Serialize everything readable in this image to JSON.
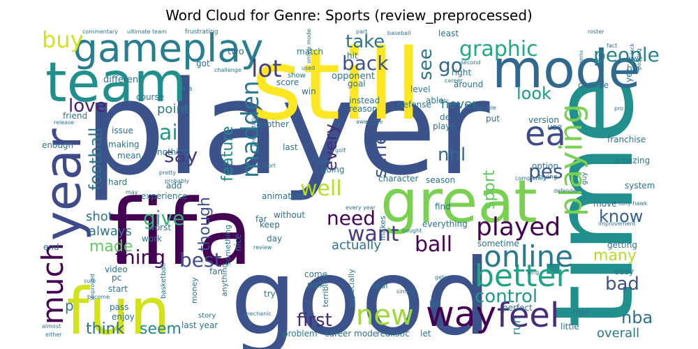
{
  "chart_data": {
    "type": "wordcloud",
    "title": "Word Cloud for Genre: Sports (review_preprocessed)",
    "words": [
      {
        "text": "player",
        "color": "#3b528b"
      },
      {
        "text": "time",
        "color": "#21908d"
      },
      {
        "text": "good",
        "color": "#3b528b"
      },
      {
        "text": "still",
        "color": "#fde725"
      },
      {
        "text": "fifa",
        "color": "#440154"
      },
      {
        "text": "team",
        "color": "#21908d"
      },
      {
        "text": "mode",
        "color": "#31688e"
      },
      {
        "text": "great",
        "color": "#7ad151"
      },
      {
        "text": "year",
        "color": "#3e4a89"
      },
      {
        "text": "fun",
        "color": "#d2e21b"
      },
      {
        "text": "gameplay",
        "color": "#287d8e"
      },
      {
        "text": "much",
        "color": "#440154"
      },
      {
        "text": "way",
        "color": "#440154"
      },
      {
        "text": "feel",
        "color": "#472c7a"
      },
      {
        "text": "better",
        "color": "#20a386"
      },
      {
        "text": "online",
        "color": "#2a788e"
      },
      {
        "text": "new",
        "color": "#a0da39"
      },
      {
        "text": "ea",
        "color": "#3e4a89"
      },
      {
        "text": "playing",
        "color": "#7ad151"
      },
      {
        "text": "madden",
        "color": "#2a788e"
      },
      {
        "text": "played",
        "color": "#440154"
      },
      {
        "text": "lot",
        "color": "#433e85"
      },
      {
        "text": "graphic",
        "color": "#22a884"
      },
      {
        "text": "buy",
        "color": "#d2e21b"
      },
      {
        "text": "people",
        "color": "#25848e"
      },
      {
        "text": "take",
        "color": "#2c728e"
      },
      {
        "text": "back",
        "color": "#3b528b"
      },
      {
        "text": "go",
        "color": "#31688e"
      },
      {
        "text": "see",
        "color": "#2c728e"
      },
      {
        "text": "ai",
        "color": "#1f9a8a"
      },
      {
        "text": "love",
        "color": "#482173"
      },
      {
        "text": "say",
        "color": "#443983"
      },
      {
        "text": "football",
        "color": "#2c728e"
      },
      {
        "text": "want",
        "color": "#443983"
      },
      {
        "text": "well",
        "color": "#b5de2b"
      },
      {
        "text": "need",
        "color": "#440154"
      },
      {
        "text": "ball",
        "color": "#440154"
      },
      {
        "text": "serie",
        "color": "#3b528b"
      },
      {
        "text": "nhl",
        "color": "#31688e"
      },
      {
        "text": "pes",
        "color": "#3b528b"
      },
      {
        "text": "sport",
        "color": "#5ec962"
      },
      {
        "text": "look",
        "color": "#1f9a8a"
      },
      {
        "text": "though",
        "color": "#3b528b"
      },
      {
        "text": "feature",
        "color": "#25848e"
      },
      {
        "text": "every",
        "color": "#482878"
      },
      {
        "text": "give",
        "color": "#35b779"
      },
      {
        "text": "thing",
        "color": "#440154"
      },
      {
        "text": "best",
        "color": "#3e4a89"
      },
      {
        "text": "made",
        "color": "#5ec962"
      },
      {
        "text": "control",
        "color": "#1f9a8a"
      },
      {
        "text": "first",
        "color": "#482878"
      },
      {
        "text": "know",
        "color": "#355f8d"
      },
      {
        "text": "bad",
        "color": "#3b528b"
      },
      {
        "text": "many",
        "color": "#b5de2b"
      },
      {
        "text": "nba",
        "color": "#2c728e"
      },
      {
        "text": "seem",
        "color": "#25848e"
      },
      {
        "text": "think",
        "color": "#2c728e"
      },
      {
        "text": "actually",
        "color": "#2c728e"
      },
      {
        "text": "shot",
        "color": "#2c728e"
      },
      {
        "text": "always",
        "color": "#2c728e"
      },
      {
        "text": "point",
        "color": "#2a788e"
      },
      {
        "text": "never",
        "color": "#2a788e"
      },
      {
        "text": "p",
        "color": "#2a788e"
      },
      {
        "text": "overall",
        "color": "#2a788e"
      },
      {
        "text": "run",
        "color": "#2a788e"
      },
      {
        "text": "different",
        "color": "#2c728e"
      },
      {
        "text": "two",
        "color": "#31688e"
      },
      {
        "text": "match",
        "color": "#2a788e"
      },
      {
        "text": "hit",
        "color": "#2c728e"
      },
      {
        "text": "score",
        "color": "#2c728e"
      },
      {
        "text": "opponent",
        "color": "#2c728e"
      },
      {
        "text": "level",
        "color": "#2a788e"
      },
      {
        "text": "right",
        "color": "#2c728e"
      },
      {
        "text": "around",
        "color": "#2c728e"
      },
      {
        "text": "least",
        "color": "#2c728e"
      },
      {
        "text": "big",
        "color": "#2c728e"
      },
      {
        "text": "yet",
        "color": "#2c728e"
      },
      {
        "text": "change",
        "color": "#2c728e"
      },
      {
        "text": "defense",
        "color": "#2c728e"
      },
      {
        "text": "goal",
        "color": "#2c728e"
      },
      {
        "text": "win",
        "color": "#2c728e"
      },
      {
        "text": "instead",
        "color": "#2c728e"
      },
      {
        "text": "reason",
        "color": "#2c728e"
      },
      {
        "text": "able",
        "color": "#2c728e"
      },
      {
        "text": "de",
        "color": "#2c728e"
      },
      {
        "text": "put",
        "color": "#2c728e"
      },
      {
        "text": "plays",
        "color": "#2c728e"
      },
      {
        "text": "version",
        "color": "#2c728e"
      },
      {
        "text": "use",
        "color": "#2c728e"
      },
      {
        "text": "franchise",
        "color": "#2c728e"
      },
      {
        "text": "amazing",
        "color": "#2c728e"
      },
      {
        "text": "option",
        "color": "#2c728e"
      },
      {
        "text": "system",
        "color": "#2c728e"
      },
      {
        "text": "move",
        "color": "#2c728e"
      },
      {
        "text": "getting",
        "color": "#2c728e"
      },
      {
        "text": "easy",
        "color": "#2c728e"
      },
      {
        "text": "little",
        "color": "#2c728e"
      },
      {
        "text": "title",
        "color": "#2c728e"
      },
      {
        "text": "perfect",
        "color": "#2c728e"
      },
      {
        "text": "sometime",
        "color": "#2c728e"
      },
      {
        "text": "find",
        "color": "#2c728e"
      },
      {
        "text": "everything",
        "color": "#2c728e"
      },
      {
        "text": "character",
        "color": "#2c728e"
      },
      {
        "text": "season",
        "color": "#2c728e"
      },
      {
        "text": "going",
        "color": "#2c728e"
      },
      {
        "text": "another",
        "color": "#2c728e"
      },
      {
        "text": "last",
        "color": "#2c728e"
      },
      {
        "text": "animation",
        "color": "#2c728e"
      },
      {
        "text": "makes",
        "color": "#2c728e"
      },
      {
        "text": "without",
        "color": "#2c728e"
      },
      {
        "text": "keep",
        "color": "#2c728e"
      },
      {
        "text": "far",
        "color": "#2c728e"
      },
      {
        "text": "day",
        "color": "#2c728e"
      },
      {
        "text": "nice",
        "color": "#2c728e"
      },
      {
        "text": "something",
        "color": "#2c728e"
      },
      {
        "text": "anything",
        "color": "#2c728e"
      },
      {
        "text": "fan",
        "color": "#2c728e"
      },
      {
        "text": "money",
        "color": "#2c728e"
      },
      {
        "text": "story",
        "color": "#2c728e"
      },
      {
        "text": "try",
        "color": "#2c728e"
      },
      {
        "text": "come",
        "color": "#2c728e"
      },
      {
        "text": "pick",
        "color": "#2c728e"
      },
      {
        "text": "especially",
        "color": "#2c728e"
      },
      {
        "text": "terrible",
        "color": "#2c728e"
      },
      {
        "text": "real",
        "color": "#2c728e"
      },
      {
        "text": "bit",
        "color": "#2c728e"
      },
      {
        "text": "problem",
        "color": "#2c728e"
      },
      {
        "text": "career mode",
        "color": "#2c728e"
      },
      {
        "text": "realistic",
        "color": "#2c728e"
      },
      {
        "text": "let",
        "color": "#2c728e"
      },
      {
        "text": "last year",
        "color": "#2c728e"
      },
      {
        "text": "enjoy",
        "color": "#2c728e"
      },
      {
        "text": "pass",
        "color": "#2c728e"
      },
      {
        "text": "start",
        "color": "#2c728e"
      },
      {
        "text": "pc",
        "color": "#2c728e"
      },
      {
        "text": "video",
        "color": "#2c728e"
      },
      {
        "text": "end",
        "color": "#2c728e"
      },
      {
        "text": "work",
        "color": "#2c728e"
      },
      {
        "text": "worst",
        "color": "#2c728e"
      },
      {
        "text": "experience",
        "color": "#2c728e"
      },
      {
        "text": "add",
        "color": "#2c728e"
      },
      {
        "text": "hard",
        "color": "#2c728e"
      },
      {
        "text": "mean",
        "color": "#2c728e"
      },
      {
        "text": "making",
        "color": "#2c728e"
      },
      {
        "text": "nothing",
        "color": "#2c728e"
      },
      {
        "text": "enough",
        "color": "#2c728e"
      },
      {
        "text": "issue",
        "color": "#2c728e"
      },
      {
        "text": "friend",
        "color": "#2c728e"
      },
      {
        "text": "course",
        "color": "#2c728e"
      },
      {
        "text": "got",
        "color": "#2c728e"
      },
      {
        "text": "show",
        "color": "#2c728e"
      },
      {
        "text": "a a",
        "color": "#2c728e"
      },
      {
        "text": "basketball",
        "color": "#2c728e"
      },
      {
        "text": "wwe",
        "color": "#2c728e"
      },
      {
        "text": "commentary",
        "color": "#2c728e"
      },
      {
        "text": "ultimate team",
        "color": "#2c728e"
      },
      {
        "text": "frustrating",
        "color": "#2c728e"
      },
      {
        "text": "part",
        "color": "#2c728e"
      },
      {
        "text": "baseball",
        "color": "#2c728e"
      },
      {
        "text": "roster",
        "color": "#2c728e"
      },
      {
        "text": "fact",
        "color": "#2c728e"
      },
      {
        "text": "challenge",
        "color": "#2c728e"
      },
      {
        "text": "used",
        "color": "#2c728e"
      },
      {
        "text": "online mode",
        "color": "#2c728e"
      },
      {
        "text": "second",
        "color": "#2c728e"
      },
      {
        "text": "career",
        "color": "#2c728e"
      },
      {
        "text": "etc",
        "color": "#2c728e"
      },
      {
        "text": "horrible",
        "color": "#2c728e"
      },
      {
        "text": "release",
        "color": "#2c728e"
      },
      {
        "text": "awesome",
        "color": "#2c728e"
      },
      {
        "text": "presentation",
        "color": "#2c728e"
      },
      {
        "text": "golf",
        "color": "#2c728e"
      },
      {
        "text": "skate",
        "color": "#2c728e"
      },
      {
        "text": "ea sport",
        "color": "#2c728e"
      },
      {
        "text": "pretty",
        "color": "#2c728e"
      },
      {
        "text": "probably",
        "color": "#2c728e"
      },
      {
        "text": "completely",
        "color": "#2c728e"
      },
      {
        "text": "trying",
        "color": "#2c728e"
      },
      {
        "text": "defender",
        "color": "#2c728e"
      },
      {
        "text": "may",
        "color": "#2c728e"
      },
      {
        "text": "tony hawk",
        "color": "#2c728e"
      },
      {
        "text": "improvement",
        "color": "#2c728e"
      },
      {
        "text": "every year",
        "color": "#2c728e"
      },
      {
        "text": "bought",
        "color": "#2c728e"
      },
      {
        "text": "review",
        "color": "#2c728e"
      },
      {
        "text": "sure",
        "color": "#2c728e"
      },
      {
        "text": "improved",
        "color": "#2c728e"
      },
      {
        "text": "become",
        "color": "#2c728e"
      },
      {
        "text": "almost",
        "color": "#2c728e"
      },
      {
        "text": "either",
        "color": "#2c728e"
      },
      {
        "text": "mechanic",
        "color": "#2c728e"
      },
      {
        "text": "gets",
        "color": "#2c728e"
      },
      {
        "text": "long",
        "color": "#2c728e"
      },
      {
        "text": "simply",
        "color": "#2c728e"
      },
      {
        "text": "menu",
        "color": "#2c728e"
      },
      {
        "text": "pro",
        "color": "#2c728e"
      },
      {
        "text": "passing",
        "color": "#2c728e"
      },
      {
        "text": "lack",
        "color": "#2c728e"
      },
      {
        "text": "guy",
        "color": "#2c728e"
      }
    ]
  }
}
